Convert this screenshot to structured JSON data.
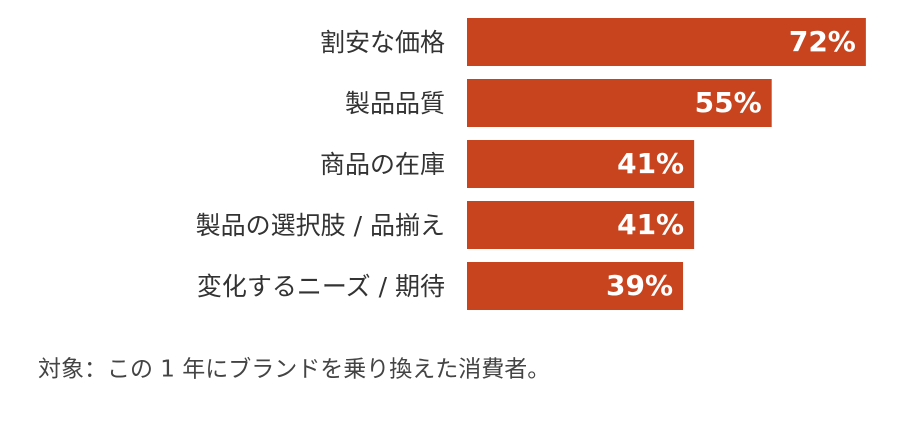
{
  "chart_data": {
    "type": "bar",
    "orientation": "horizontal",
    "categories": [
      "割安な価格",
      "製品品質",
      "商品の在庫",
      "製品の選択肢 / 品揃え",
      "変化するニーズ / 期待"
    ],
    "values": [
      72,
      55,
      41,
      41,
      39
    ],
    "value_labels": [
      "72%",
      "55%",
      "41%",
      "41%",
      "39%"
    ],
    "color": "#c8441f",
    "note": "対象：この 1 年にブランドを乗り換えた消費者。"
  }
}
